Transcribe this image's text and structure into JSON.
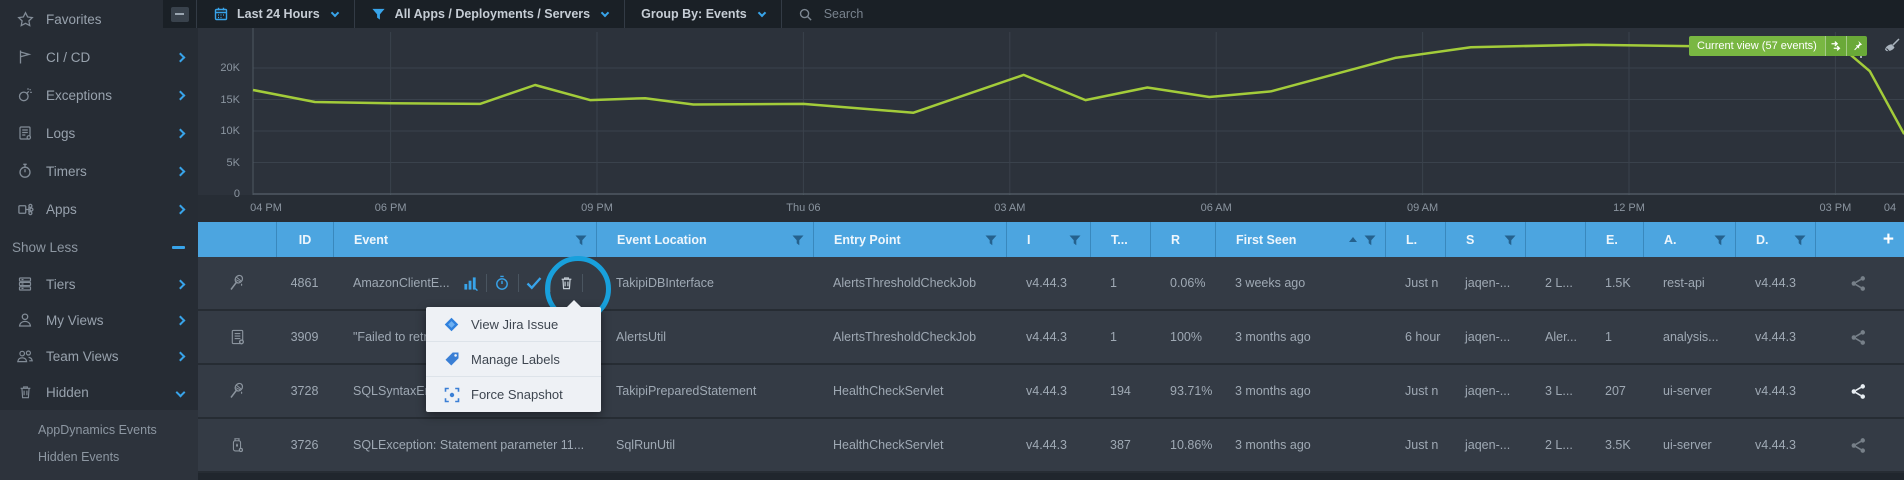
{
  "colors": {
    "accent": "#38a4ea",
    "header_blue": "#4ca5e0",
    "line_green": "#a3cc3a",
    "badge_green": "#79b742",
    "annotation_blue": "#18a0dc"
  },
  "sidebar": {
    "items_top": [
      {
        "icon": "star",
        "label": "Favorites"
      },
      {
        "icon": "flag",
        "label": "CI / CD"
      },
      {
        "icon": "bomb",
        "label": "Exceptions"
      },
      {
        "icon": "document",
        "label": "Logs"
      },
      {
        "icon": "stopwatch",
        "label": "Timers"
      },
      {
        "icon": "apps",
        "label": "Apps"
      }
    ],
    "show_less_label": "Show Less",
    "items_bottom": [
      {
        "icon": "tiers",
        "label": "Tiers"
      },
      {
        "icon": "person",
        "label": "My Views"
      },
      {
        "icon": "people",
        "label": "Team Views"
      },
      {
        "icon": "trash",
        "label": "Hidden",
        "expanded": true
      }
    ],
    "hidden_sub_items": [
      "AppDynamics Events",
      "Hidden Events"
    ]
  },
  "toolbar": {
    "time_range": "Last 24 Hours",
    "scope": "All Apps / Deployments / Servers",
    "group_by": "Group By: Events",
    "search_placeholder": "Search"
  },
  "chart_data": {
    "type": "line",
    "x_ticks": [
      "04 PM",
      "06 PM",
      "09 PM",
      "Thu 06",
      "03 AM",
      "06 AM",
      "09 AM",
      "12 PM",
      "03 PM",
      "04"
    ],
    "x_tick_hours": [
      0,
      2,
      5,
      8,
      11,
      14,
      17,
      20,
      23,
      24
    ],
    "y_ticks": [
      "0",
      "5K",
      "10K",
      "15K",
      "20K"
    ],
    "y_tick_values": [
      0,
      5000,
      10000,
      15000,
      20000
    ],
    "ylim": [
      0,
      26300
    ],
    "grid": true,
    "series": [
      {
        "name": "events",
        "points": [
          [
            0,
            16500
          ],
          [
            0.9,
            14600
          ],
          [
            2,
            14400
          ],
          [
            3.3,
            14300
          ],
          [
            4.1,
            17300
          ],
          [
            4.9,
            14900
          ],
          [
            5.7,
            15200
          ],
          [
            6.4,
            14200
          ],
          [
            8,
            14300
          ],
          [
            9.6,
            12900
          ],
          [
            11.2,
            18900
          ],
          [
            12.1,
            14900
          ],
          [
            13,
            16900
          ],
          [
            13.9,
            15400
          ],
          [
            14.8,
            16300
          ],
          [
            16.6,
            21600
          ],
          [
            17.7,
            23300
          ],
          [
            19.4,
            23700
          ],
          [
            21.4,
            23400
          ],
          [
            23.1,
            23200
          ],
          [
            23.5,
            19500
          ],
          [
            24,
            9500
          ]
        ]
      }
    ],
    "annotation_label": "Current view (57 events)"
  },
  "table": {
    "columns": [
      {
        "key": "id",
        "label": "ID"
      },
      {
        "key": "event",
        "label": "Event",
        "funnel": true
      },
      {
        "key": "location",
        "label": "Event Location",
        "funnel": true
      },
      {
        "key": "entry",
        "label": "Entry Point",
        "funnel": true
      },
      {
        "key": "i",
        "label": "I",
        "funnel": true
      },
      {
        "key": "t",
        "label": "T..."
      },
      {
        "key": "r",
        "label": "R"
      },
      {
        "key": "first_seen",
        "label": "First Seen",
        "sort": "asc",
        "funnel": true
      },
      {
        "key": "l",
        "label": "L."
      },
      {
        "key": "s",
        "label": "S",
        "funnel": true
      },
      {
        "key": "labels",
        "label": ""
      },
      {
        "key": "e",
        "label": "E."
      },
      {
        "key": "a",
        "label": "A.",
        "funnel": true
      },
      {
        "key": "d",
        "label": "D.",
        "funnel": true
      }
    ],
    "add_column_label": "+",
    "rows": [
      {
        "type_icon": "wand",
        "id": "4861",
        "event": "AmazonClientE...",
        "actions": [
          "chart",
          "stopwatch",
          "check",
          "trash",
          "dots"
        ],
        "location": "TakipiDBInterface",
        "entry": "AlertsThresholdCheckJob",
        "i": "v4.44.3",
        "t": "1",
        "r": "0.06%",
        "first_seen": "3 weeks ago",
        "l": "Just n",
        "s": "jaqen-...",
        "labels": "2 L...",
        "e": "1.5K",
        "a": "rest-api",
        "d": "v4.44.3",
        "share": "dim"
      },
      {
        "type_icon": "doc",
        "id": "3909",
        "event": "\"Failed to retr",
        "location": "AlertsUtil",
        "entry": "AlertsThresholdCheckJob",
        "i": "v4.44.3",
        "t": "1",
        "r": "100%",
        "first_seen": "3 months ago",
        "l": "6 hour",
        "s": "jaqen-...",
        "labels": "Aler...",
        "e": "1",
        "a": "analysis...",
        "d": "v4.44.3",
        "share": "dim"
      },
      {
        "type_icon": "wand",
        "id": "3728",
        "event": "SQLSyntaxEr",
        "location": "TakipiPreparedStatement",
        "entry": "HealthCheckServlet",
        "i": "v4.44.3",
        "t": "194",
        "r": "93.71%",
        "first_seen": "3 months ago",
        "l": "Just n",
        "s": "jaqen-...",
        "labels": "3 L...",
        "e": "207",
        "a": "ui-server",
        "d": "v4.44.3",
        "share": "bright"
      },
      {
        "type_icon": "jar",
        "id": "3726",
        "event": "SQLException: Statement parameter 11...",
        "location": "SqlRunUtil",
        "entry": "HealthCheckServlet",
        "i": "v4.44.3",
        "t": "387",
        "r": "10.86%",
        "first_seen": "3 months ago",
        "l": "Just n",
        "s": "jaqen-...",
        "labels": "2 L...",
        "e": "3.5K",
        "a": "ui-server",
        "d": "v4.44.3",
        "share": "dim"
      }
    ]
  },
  "menu": {
    "items": [
      {
        "icon": "jira",
        "label": "View Jira Issue"
      },
      {
        "icon": "tag",
        "label": "Manage Labels"
      },
      {
        "icon": "snapshot",
        "label": "Force Snapshot"
      }
    ]
  }
}
